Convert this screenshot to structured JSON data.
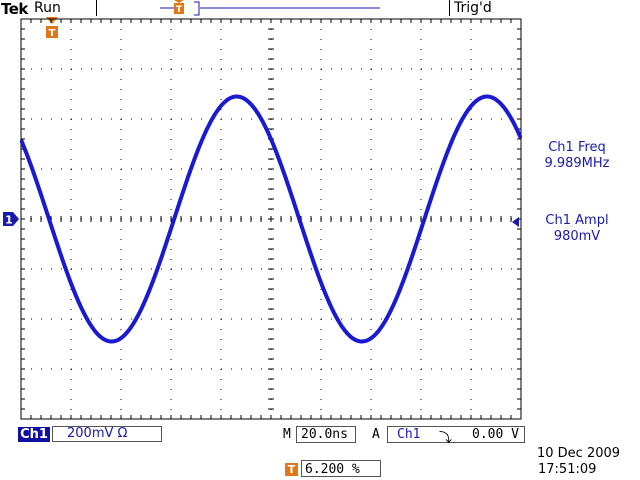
{
  "header": {
    "brand": "Tek",
    "acq_state": "Run",
    "trigger_status": "Trig'd"
  },
  "ch1_marker": "1",
  "trigger_marker": "T",
  "readouts": {
    "freq_label": "Ch1 Freq",
    "freq_value": "9.989MHz",
    "ampl_label": "Ch1 Ampl",
    "ampl_value": "980mV"
  },
  "bottom": {
    "channel": "Ch1",
    "volts_per_div": "200mV",
    "impedance_symbol": "Ω",
    "time_prefix": "M",
    "time_per_div": "20.0ns",
    "trigger_mode": "A",
    "trigger_source": "Ch1",
    "trigger_slope_symbol": "⤵",
    "trigger_level": "0.00 V",
    "trigger_position": "6.200 %"
  },
  "datetime": {
    "date": "10 Dec  2009",
    "time": "17:51:09"
  },
  "colors": {
    "trace": "#1a1ad0",
    "channel": "#1a1aa8",
    "trigger": "#e07818",
    "graticule": "#000000"
  },
  "waveform": {
    "frequency_mhz": 9.989,
    "amplitude_mv": 980,
    "volts_per_div_mv": 200,
    "time_per_div_ns": 20.0
  }
}
